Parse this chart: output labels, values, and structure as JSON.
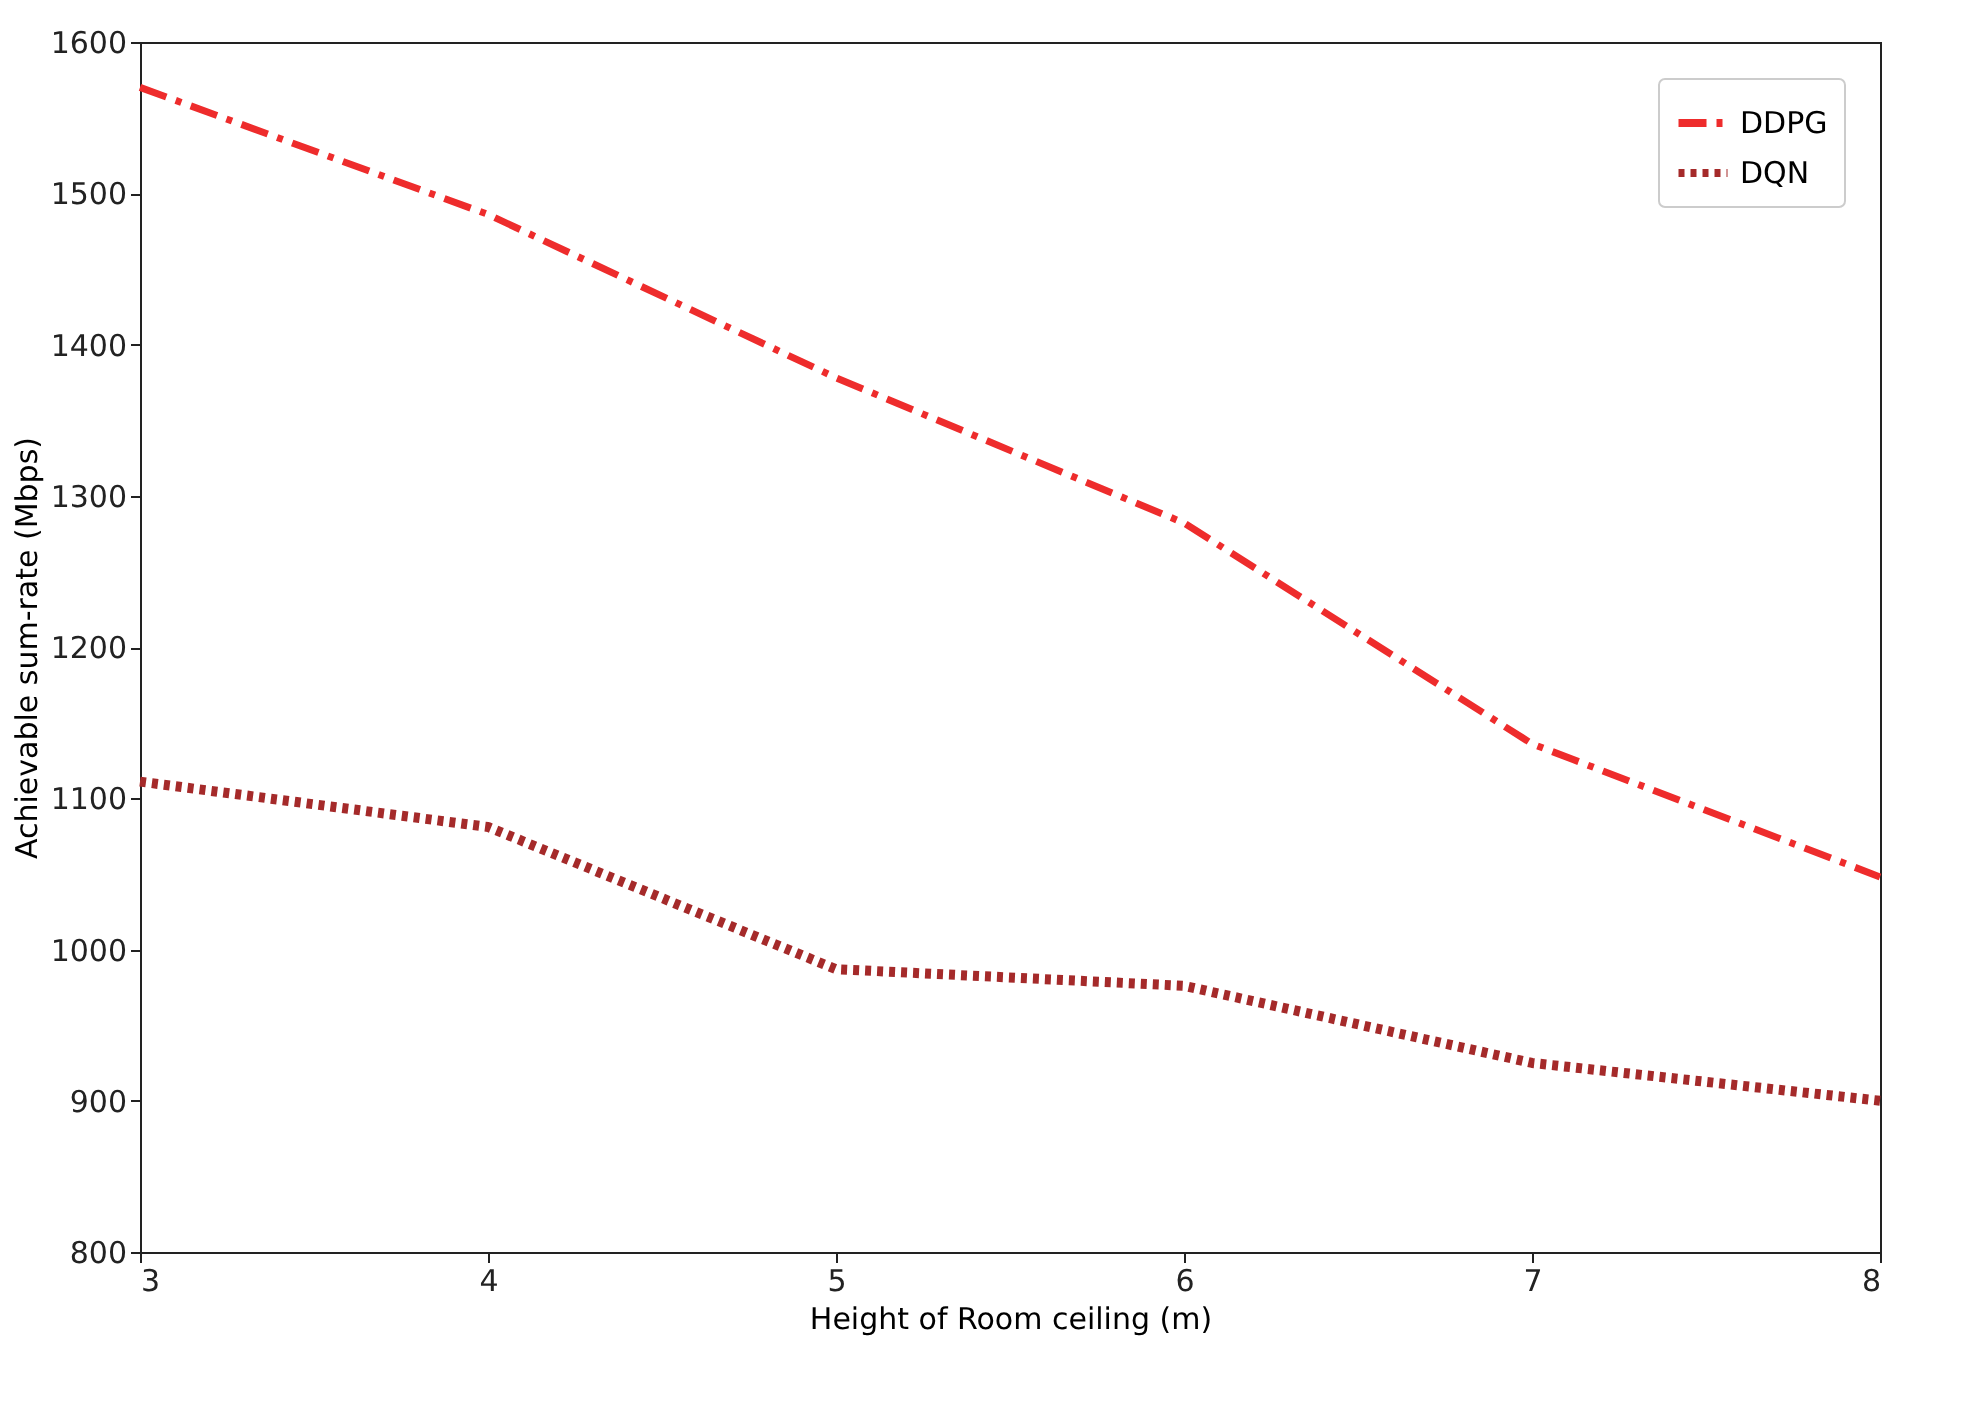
{
  "chart_data": {
    "type": "line",
    "xlabel": "Height of Room ceiling (m)",
    "ylabel": "Achievable sum-rate (Mbps)",
    "x": [
      3,
      4,
      5,
      6,
      7,
      8
    ],
    "series": [
      {
        "name": "DDPG",
        "color": "#ee2c2c",
        "line_style": "dashdot",
        "values": [
          1570,
          1486,
          1378,
          1282,
          1136,
          1048
        ]
      },
      {
        "name": "DQN",
        "color": "#a52a2a",
        "line_style": "dotted",
        "values": [
          1111,
          1081,
          987,
          976,
          925,
          900
        ]
      }
    ],
    "xlim": [
      3,
      8
    ],
    "xticks": [
      3,
      4,
      5,
      6,
      7,
      8
    ],
    "ylim": [
      800,
      1600
    ],
    "yticks": [
      800,
      900,
      1000,
      1100,
      1200,
      1300,
      1400,
      1500,
      1600
    ],
    "grid": false,
    "legend": "top right",
    "marker": "none"
  }
}
